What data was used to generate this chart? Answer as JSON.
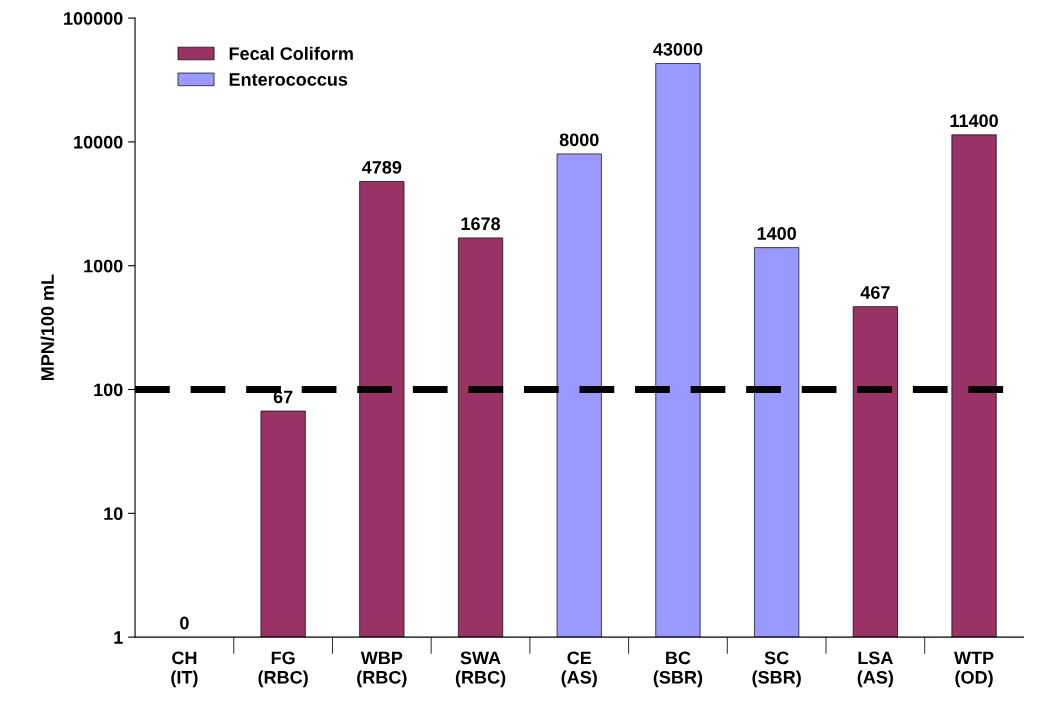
{
  "chart_data": {
    "type": "bar",
    "ylabel": "MPN/100 mL",
    "categories": [
      "CH\n(IT)",
      "FG\n(RBC)",
      "WBP\n(RBC)",
      "SWA\n(RBC)",
      "CE\n(AS)",
      "BC\n(SBR)",
      "SC\n(SBR)",
      "LSA\n(AS)",
      "WTP\n(OD)"
    ],
    "series": [
      {
        "name": "Fecal Coliform",
        "color": "#993366",
        "values": [
          null,
          67,
          4789,
          1678,
          null,
          null,
          null,
          467,
          11400
        ],
        "value_labels": [
          "0",
          "67",
          "4789",
          "1678",
          null,
          null,
          null,
          "467",
          "11400"
        ]
      },
      {
        "name": "Enterococcus",
        "color": "#9999ff",
        "values": [
          null,
          null,
          null,
          null,
          8000,
          43000,
          1400,
          null,
          null
        ]
      }
    ],
    "log": true,
    "ylim": [
      1,
      100000
    ],
    "yticks": [
      1,
      10,
      100,
      1000,
      10000,
      100000
    ],
    "ref_lines": [
      {
        "axis": "y",
        "value": 100,
        "color": "#000000",
        "line_style": "dashed"
      }
    ],
    "data_labels": true,
    "legend": "top left",
    "grid": false
  }
}
